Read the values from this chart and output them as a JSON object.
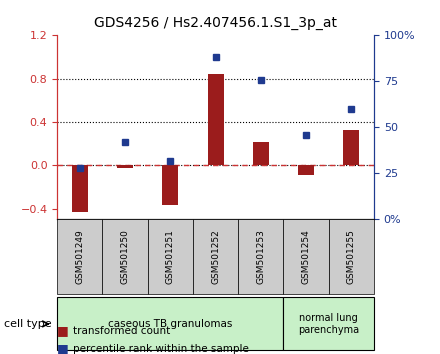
{
  "title": "GDS4256 / Hs2.407456.1.S1_3p_at",
  "samples": [
    "GSM501249",
    "GSM501250",
    "GSM501251",
    "GSM501252",
    "GSM501253",
    "GSM501254",
    "GSM501255"
  ],
  "transformed_count": [
    -0.43,
    -0.02,
    -0.37,
    0.84,
    0.22,
    -0.09,
    0.33
  ],
  "percentile_rank": [
    0.28,
    0.42,
    0.32,
    0.88,
    0.76,
    0.46,
    0.6
  ],
  "ylim_left": [
    -0.5,
    1.2
  ],
  "ylim_right": [
    0,
    100
  ],
  "yticks_left": [
    -0.4,
    0.0,
    0.4,
    0.8,
    1.2
  ],
  "yticks_right": [
    0,
    25,
    50,
    75,
    100
  ],
  "hlines": [
    0.0,
    0.4,
    0.8
  ],
  "bar_color": "#9B1C1C",
  "dot_color": "#1F3A8F",
  "group1_label": "caseous TB granulomas",
  "group1_indices": [
    0,
    1,
    2,
    3,
    4
  ],
  "group2_label": "normal lung\nparenchyma",
  "group2_indices": [
    5,
    6
  ],
  "group1_bg": "#C8F0C8",
  "group2_bg": "#C8F0C8",
  "cell_type_label": "cell type",
  "legend_bar_label": "transformed count",
  "legend_dot_label": "percentile rank within the sample",
  "background_color": "#ffffff",
  "plot_bg": "#ffffff",
  "dashed_line_color": "#CC3333"
}
